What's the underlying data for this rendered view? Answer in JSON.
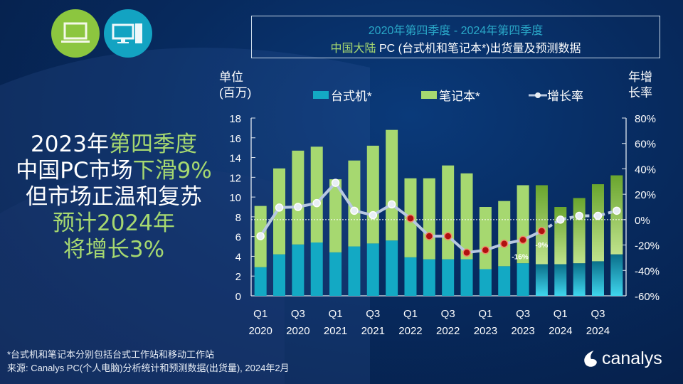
{
  "title_line1": "2020年第四季度 -  2024年第四季度",
  "title_line2_green": "中国大陆",
  "title_line2_rest": " PC (台式机和笔记本*)出货量及预测数据",
  "headline": {
    "l1a": "2023年",
    "l1b": "第四季度",
    "l2a": "中国PC市场",
    "l2b": "下滑9%",
    "l3": "但市场正温和复苏",
    "l4": "预计2024年",
    "l5": "将增长3%"
  },
  "icons": [
    "laptop-icon",
    "desktop-icon"
  ],
  "footnote": "*台式机和笔记本分别包括台式工作站和移动工作站",
  "source": "来源: Canalys PC(个人电脑)分析统计和预测数据(出货量), 2024年2月",
  "logo": "canalys",
  "chart_data": {
    "type": "bar",
    "stacked": true,
    "ylabel": "单位\n(百万)",
    "ylabel_l1": "单位",
    "ylabel_l2": "(百万)",
    "y2label_l1": "年增",
    "y2label_l2": "长率",
    "ylim": [
      0,
      18
    ],
    "yticks": [
      "0",
      "2",
      "4",
      "6",
      "8",
      "10",
      "12",
      "14",
      "16",
      "18"
    ],
    "y2lim": [
      -60,
      80
    ],
    "y2ticks": [
      "-60%",
      "-40%",
      "-20%",
      "0%",
      "20%",
      "40%",
      "60%",
      "80%"
    ],
    "categories": [
      "Q1 2020",
      "Q2 2020",
      "Q3 2020",
      "Q4 2020",
      "Q1 2021",
      "Q2 2021",
      "Q3 2021",
      "Q4 2021",
      "Q1 2022",
      "Q2 2022",
      "Q3 2022",
      "Q4 2022",
      "Q1 2023",
      "Q2 2023",
      "Q3 2023",
      "Q4 2023",
      "Q1 2024",
      "Q2 2024",
      "Q3 2024",
      "Q4 2024"
    ],
    "xtick_labels": [
      [
        "Q1",
        "2020"
      ],
      [
        "Q3",
        "2020"
      ],
      [
        "Q1",
        "2021"
      ],
      [
        "Q3",
        "2021"
      ],
      [
        "Q1",
        "2022"
      ],
      [
        "Q3",
        "2022"
      ],
      [
        "Q1",
        "2023"
      ],
      [
        "Q3",
        "2023"
      ],
      [
        "Q1",
        "2024"
      ],
      [
        "Q3",
        "2024"
      ]
    ],
    "series": [
      {
        "name": "台式机*",
        "color": "#13a9c4",
        "values": [
          2.9,
          4.2,
          5.2,
          5.4,
          4.4,
          5.0,
          5.3,
          5.6,
          3.9,
          3.7,
          3.7,
          3.7,
          2.7,
          3.0,
          3.3,
          3.2,
          3.2,
          3.3,
          3.5,
          4.2
        ]
      },
      {
        "name": "笔记本*",
        "color": "#a6d870",
        "values": [
          6.2,
          8.7,
          9.5,
          9.7,
          7.4,
          8.7,
          9.9,
          11.2,
          8.0,
          8.2,
          9.5,
          8.7,
          6.3,
          6.6,
          7.9,
          8.0,
          5.8,
          6.6,
          7.8,
          8.0
        ]
      },
      {
        "name": "增长率",
        "type": "line",
        "axis": "y2",
        "color": "#b8c8e0",
        "values": [
          -13,
          9.5,
          10,
          13,
          29,
          7,
          3.5,
          12,
          1,
          -13,
          -13,
          -26,
          -24,
          -19,
          -16,
          -9,
          0,
          3,
          3,
          7
        ]
      }
    ],
    "forecast_from": "Q4 2023",
    "data_labels": [
      {
        "category": "Q3 2023",
        "text": "-16%"
      },
      {
        "category": "Q4 2023",
        "text": "-9%"
      }
    ],
    "negative_marker_color": "#b01010",
    "zero_line": "dotted"
  }
}
